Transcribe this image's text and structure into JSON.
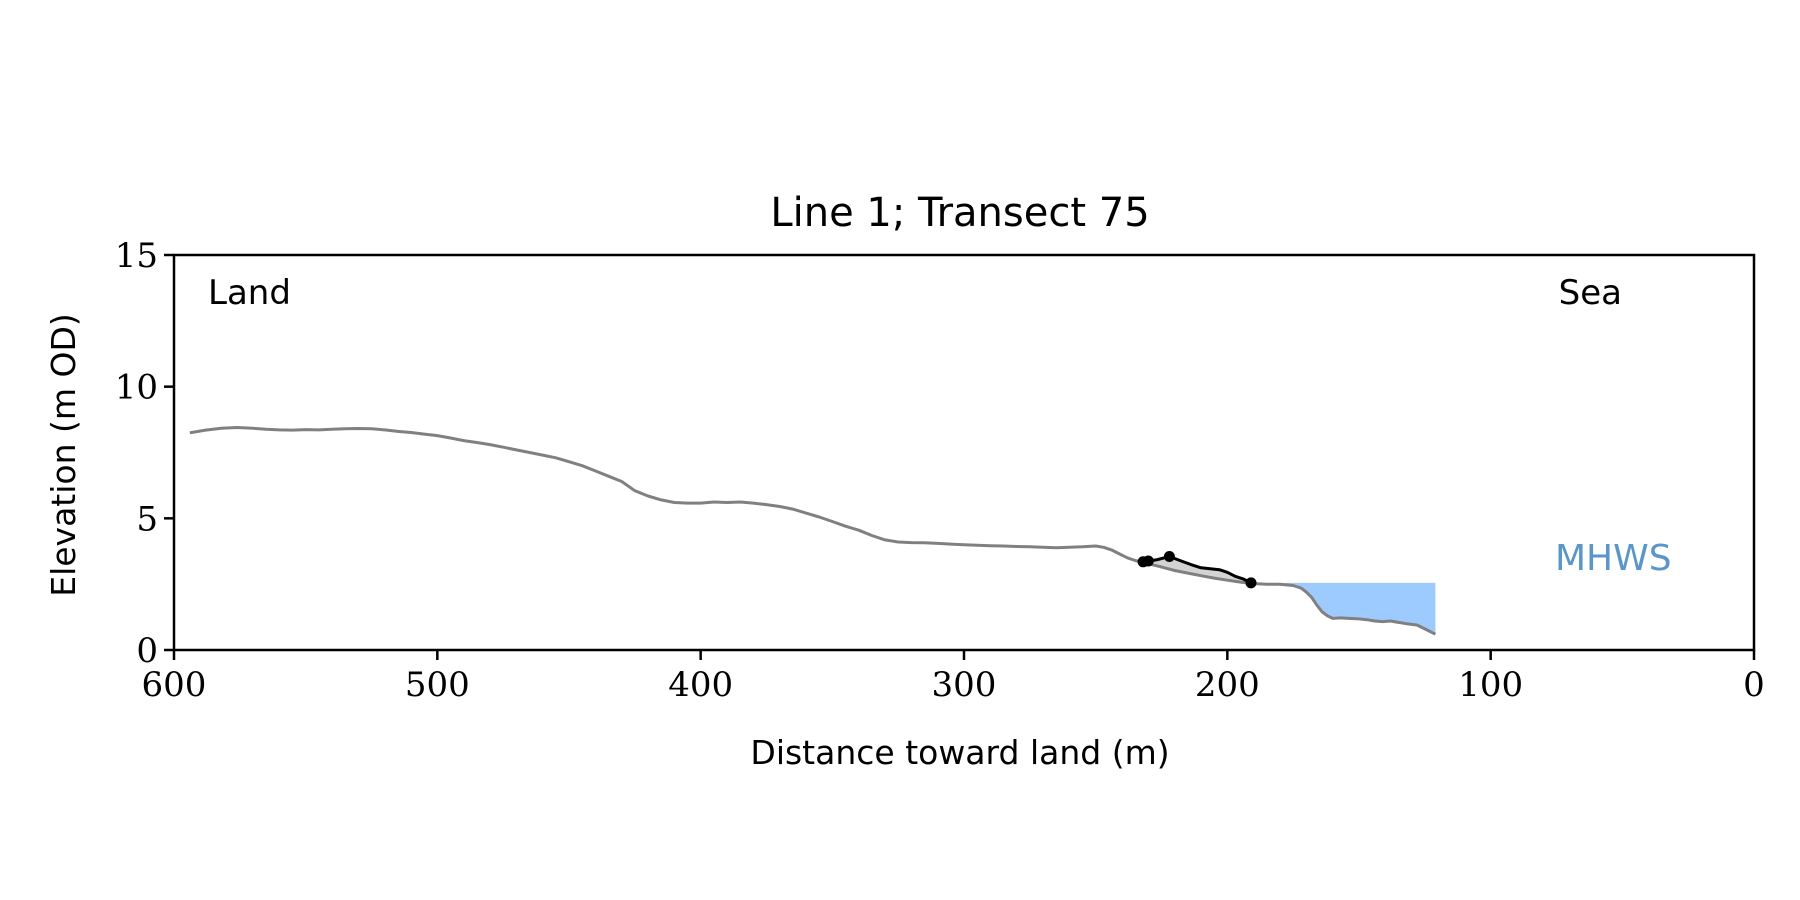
{
  "chart_data": {
    "type": "line",
    "title": "Line 1; Transect 75",
    "xlabel": "Distance toward land (m)",
    "ylabel": "Elevation (m OD)",
    "xlim": [
      600,
      0
    ],
    "ylim": [
      0,
      15
    ],
    "x_ticks": [
      600,
      500,
      400,
      300,
      200,
      100,
      0
    ],
    "y_ticks": [
      0,
      5,
      10,
      15
    ],
    "grid": false,
    "annotations": {
      "left": "Land",
      "right": "Sea",
      "water_label": "MHWS"
    },
    "mhws_level": 2.55,
    "water_extent_x": [
      178,
      121
    ],
    "colors": {
      "profile": "#808080",
      "segment": "#000000",
      "fill": "#d3d3d3",
      "water": "#9ecbff",
      "mhws_label": "#5a96c8",
      "axis": "#000000"
    },
    "profile": {
      "x": [
        594,
        588,
        582,
        576,
        570,
        565,
        560,
        555,
        550,
        545,
        540,
        535,
        530,
        525,
        520,
        515,
        510,
        505,
        500,
        495,
        490,
        485,
        480,
        475,
        470,
        465,
        460,
        455,
        450,
        445,
        440,
        435,
        430,
        425,
        420,
        415,
        410,
        405,
        400,
        395,
        390,
        385,
        380,
        375,
        370,
        365,
        360,
        355,
        350,
        345,
        340,
        335,
        330,
        325,
        320,
        315,
        310,
        305,
        300,
        295,
        290,
        285,
        280,
        275,
        270,
        265,
        260,
        255,
        250,
        247,
        244,
        241,
        238,
        235,
        232,
        229,
        226,
        223,
        220,
        215,
        210,
        205,
        200,
        195,
        190,
        185,
        180,
        175,
        172,
        170,
        168,
        166,
        164,
        162,
        160,
        157,
        154,
        150,
        147,
        144,
        141,
        138,
        135,
        132,
        128,
        125,
        121
      ],
      "y": [
        8.25,
        8.35,
        8.42,
        8.45,
        8.42,
        8.38,
        8.36,
        8.35,
        8.37,
        8.36,
        8.38,
        8.4,
        8.41,
        8.4,
        8.36,
        8.3,
        8.26,
        8.2,
        8.14,
        8.05,
        7.95,
        7.88,
        7.8,
        7.7,
        7.6,
        7.5,
        7.4,
        7.3,
        7.15,
        7.0,
        6.8,
        6.6,
        6.4,
        6.05,
        5.85,
        5.7,
        5.6,
        5.58,
        5.58,
        5.62,
        5.6,
        5.62,
        5.58,
        5.52,
        5.45,
        5.35,
        5.2,
        5.05,
        4.88,
        4.7,
        4.55,
        4.35,
        4.18,
        4.1,
        4.08,
        4.07,
        4.05,
        4.02,
        4.0,
        3.98,
        3.96,
        3.95,
        3.93,
        3.92,
        3.9,
        3.88,
        3.9,
        3.92,
        3.95,
        3.9,
        3.8,
        3.65,
        3.5,
        3.4,
        3.32,
        3.25,
        3.18,
        3.1,
        3.02,
        2.92,
        2.82,
        2.73,
        2.65,
        2.58,
        2.52,
        2.5,
        2.5,
        2.45,
        2.35,
        2.2,
        2.0,
        1.7,
        1.45,
        1.3,
        1.2,
        1.22,
        1.2,
        1.18,
        1.15,
        1.1,
        1.08,
        1.1,
        1.05,
        1.0,
        0.95,
        0.8,
        0.6
      ]
    },
    "survey_segment": {
      "x": [
        232,
        230,
        227,
        222,
        218,
        214,
        210,
        206,
        203,
        200,
        197,
        194,
        191
      ],
      "y": [
        3.35,
        3.38,
        3.42,
        3.55,
        3.4,
        3.25,
        3.12,
        3.08,
        3.05,
        2.95,
        2.8,
        2.7,
        2.55
      ],
      "markers": [
        {
          "x": 232,
          "y": 3.35
        },
        {
          "x": 230,
          "y": 3.38
        },
        {
          "x": 222,
          "y": 3.55
        },
        {
          "x": 191,
          "y": 2.55
        }
      ]
    }
  }
}
